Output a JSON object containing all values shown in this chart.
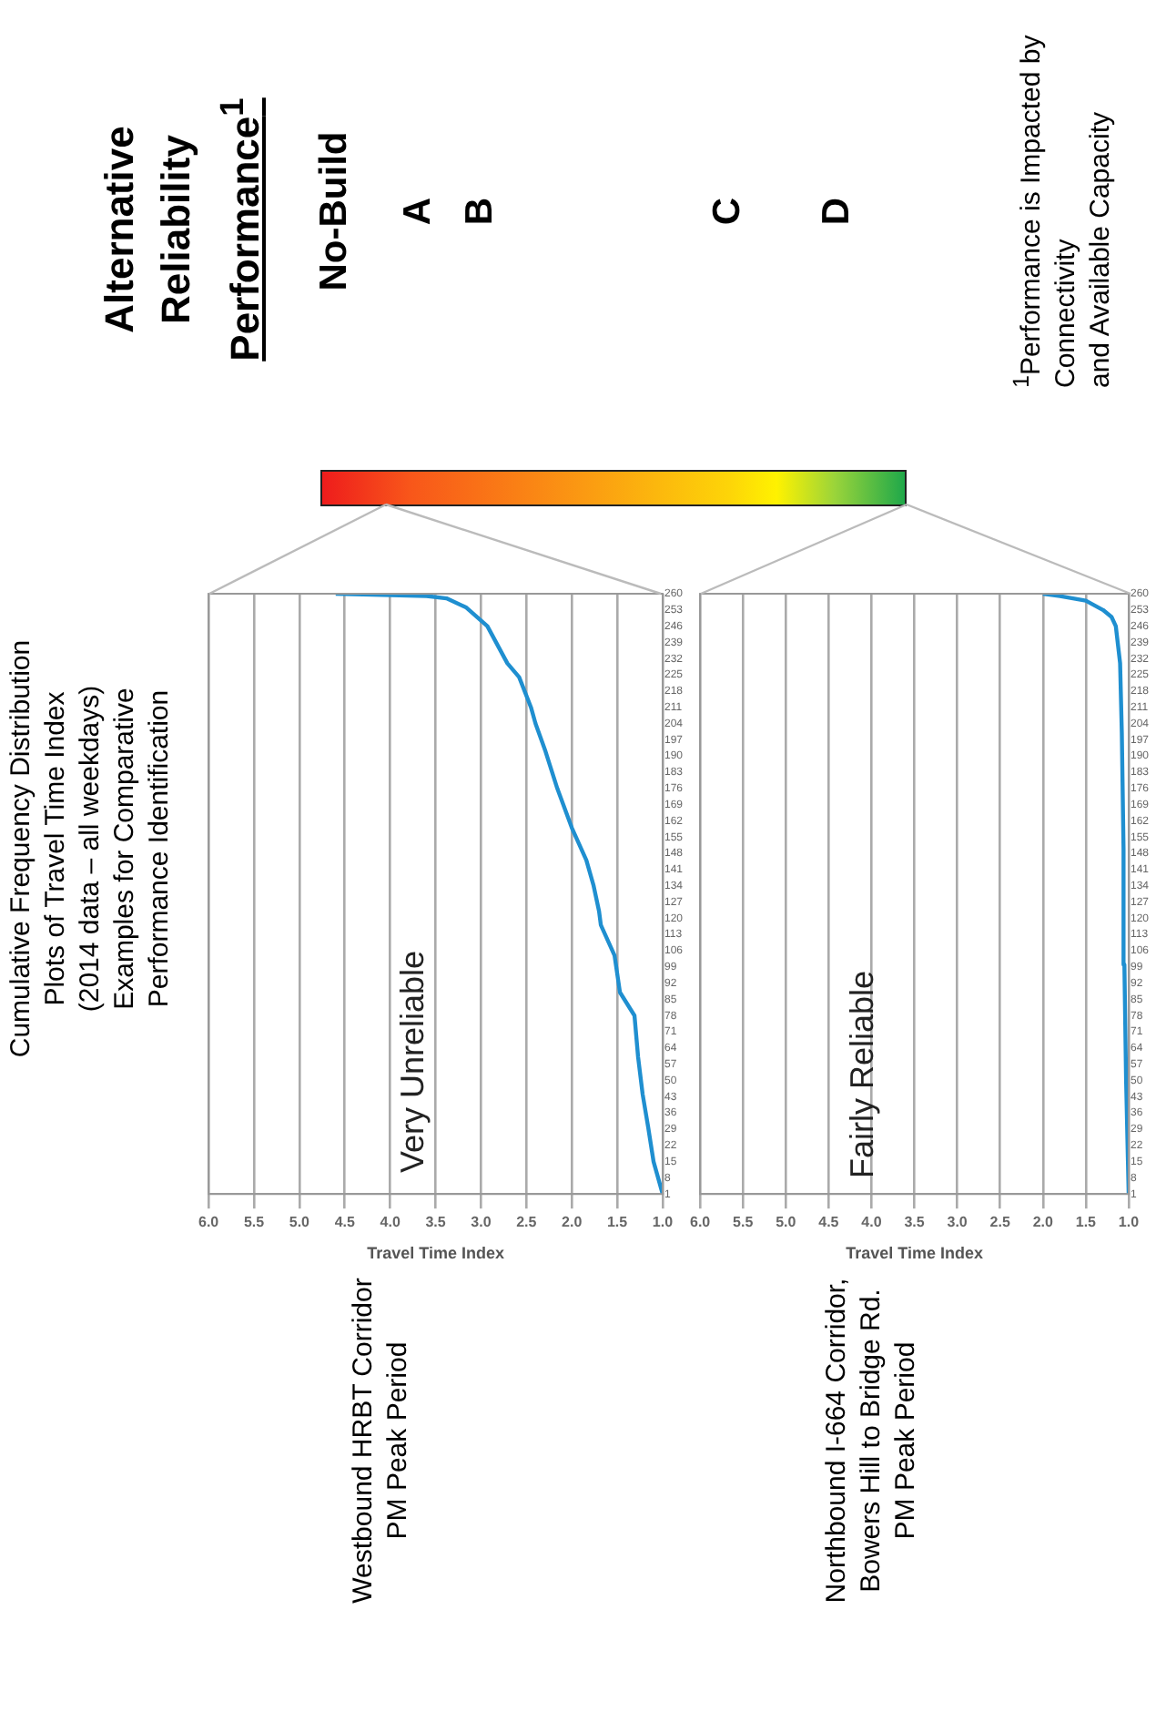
{
  "chart_data": [
    {
      "type": "line",
      "title": "Cumulative Frequency Distribution\nPlots of Travel Time Index\n(2014 data – all weekdays)\nExamples for Comparative\nPerformance Identification",
      "xlabel": "Travel Time Index",
      "annotations": [
        "Westbound HRBT Corridor\nPM Peak Period",
        "Very Unreliable"
      ],
      "x": [
        1.0,
        1.1,
        1.16,
        1.22,
        1.27,
        1.31,
        1.47,
        1.53,
        1.68,
        1.7,
        1.76,
        1.84,
        2.0,
        2.16,
        2.29,
        2.4,
        2.45,
        2.58,
        2.71,
        2.93,
        3.16,
        3.38,
        3.6,
        4.6
      ],
      "values": [
        1,
        15,
        30,
        44,
        60,
        78,
        88,
        104,
        117,
        123,
        134,
        145,
        159,
        176,
        192,
        204,
        211,
        224,
        230,
        246,
        254,
        258,
        259,
        260
      ],
      "color": "#1f8fd0",
      "ylim": [
        1,
        260
      ],
      "yticks": [
        1,
        8,
        15,
        22,
        29,
        36,
        43,
        50,
        57,
        64,
        71,
        78,
        85,
        92,
        99,
        106,
        113,
        120,
        127,
        134,
        141,
        148,
        155,
        162,
        169,
        176,
        183,
        190,
        197,
        204,
        211,
        218,
        225,
        232,
        239,
        246,
        253,
        260
      ],
      "xlim": [
        6,
        1
      ],
      "xticks": [
        {
          "value": 6,
          "label": "6.0"
        },
        5.5,
        {
          "value": 5,
          "label": "5.0"
        },
        4.5,
        {
          "value": 4,
          "label": "4.0"
        },
        3.5,
        {
          "value": 3,
          "label": "3.0"
        },
        2.5,
        {
          "value": 2,
          "label": "2.0"
        },
        1.5,
        {
          "value": 1,
          "label": "1.0"
        }
      ],
      "grid": "x",
      "marker": "none"
    },
    {
      "type": "line",
      "xlabel": "Travel Time Index",
      "annotations": [
        "Northbound I-664 Corridor,\nBowers Hill to Bridge Rd.\nPM Peak Period",
        "Fairly Reliable"
      ],
      "x": [
        1.0,
        1.03,
        1.05,
        1.06,
        1.08,
        1.1,
        1.15,
        1.2,
        1.3,
        1.5,
        1.8,
        2.0
      ],
      "values": [
        1,
        50,
        100,
        150,
        200,
        230,
        246,
        250,
        253,
        257,
        259,
        260
      ],
      "color": "#1f8fd0",
      "ylim": [
        1,
        260
      ],
      "yticks": [
        1,
        8,
        15,
        22,
        29,
        36,
        43,
        50,
        57,
        64,
        71,
        78,
        85,
        92,
        99,
        106,
        113,
        120,
        127,
        134,
        141,
        148,
        155,
        162,
        169,
        176,
        183,
        190,
        197,
        204,
        211,
        218,
        225,
        232,
        239,
        246,
        253,
        260
      ],
      "xlim": [
        6,
        1
      ],
      "xticks": [
        {
          "value": 6,
          "label": "6.0"
        },
        5.5,
        {
          "value": 5,
          "label": "5.0"
        },
        4.5,
        {
          "value": 4,
          "label": "4.0"
        },
        3.5,
        {
          "value": 3,
          "label": "3.0"
        },
        2.5,
        {
          "value": 2,
          "label": "2.0"
        },
        1.5,
        {
          "value": 1,
          "label": "1.0"
        }
      ],
      "grid": "x",
      "marker": "none"
    },
    {
      "type": "other",
      "title": "Alternative\nReliability\nPerformance$^{1}$",
      "annotations": [
        "No-Build",
        "A",
        "B",
        "C",
        "D",
        "$^{1}$Performance is Impacted by\nConnectivity\nand Available Capacity"
      ]
    }
  ]
}
